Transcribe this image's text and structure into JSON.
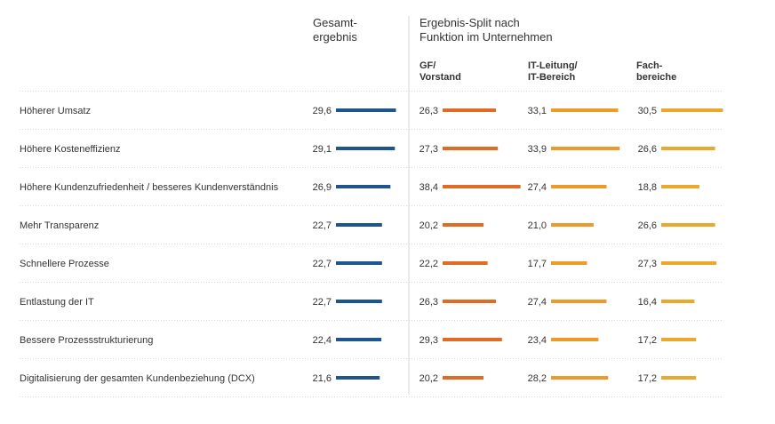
{
  "chart_data": {
    "type": "bar",
    "header": {
      "total_title": "Gesamt-\nergebnis",
      "split_title": "Ergebnis-Split nach\nFunktion im Unternehmen"
    },
    "series": [
      {
        "name": "Gesamt-\nergebnis",
        "color": "#1e5591",
        "values": [
          29.6,
          29.1,
          26.9,
          22.7,
          22.7,
          22.7,
          22.4,
          21.6
        ]
      },
      {
        "name": "GF/\nVorstand",
        "color": "#e06b25",
        "values": [
          26.3,
          27.3,
          38.4,
          20.2,
          22.2,
          26.3,
          29.3,
          20.2
        ]
      },
      {
        "name": "IT-Leitung/\nIT-Bereich",
        "color": "#ee9a28",
        "values": [
          33.1,
          33.9,
          27.4,
          21.0,
          17.7,
          27.4,
          23.4,
          28.2
        ]
      },
      {
        "name": "Fach-\nbereiche",
        "color": "#eaa92c",
        "values": [
          30.5,
          26.6,
          18.8,
          26.6,
          27.3,
          16.4,
          17.2,
          17.2
        ]
      }
    ],
    "value_labels": [
      [
        "29,6",
        "29,1",
        "26,9",
        "22,7",
        "22,7",
        "22,7",
        "22,4",
        "21,6"
      ],
      [
        "26,3",
        "27,3",
        "38,4",
        "20,2",
        "22,2",
        "26,3",
        "29,3",
        "20,2"
      ],
      [
        "33,1",
        "33,9",
        "27,4",
        "21,0",
        "17,7",
        "27,4",
        "23,4",
        "28,2"
      ],
      [
        "30,5",
        "26,6",
        "18,8",
        "26,6",
        "27,3",
        "16,4",
        "17,2",
        "17,2"
      ]
    ],
    "categories": [
      "Höherer Umsatz",
      "Höhere Kosteneffizienz",
      "Höhere Kundenzufriedenheit / besseres Kundenverständnis",
      "Mehr Transparenz",
      "Schnellere Prozesse",
      "Entlastung der IT",
      "Bessere Prozessstrukturierung",
      "Digitalisierung der gesamten Kundenbeziehung (DCX)"
    ]
  }
}
